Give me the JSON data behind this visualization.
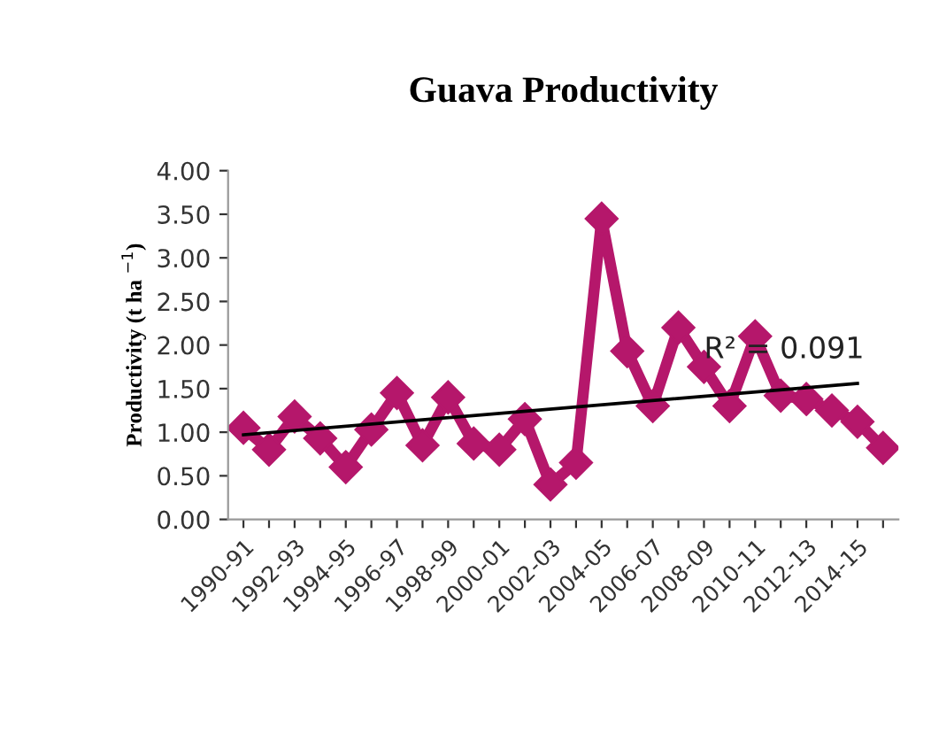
{
  "chart_data": {
    "type": "line",
    "title": "Guava Productivity",
    "ylabel": "Productivity (t ha $^{−1}$)",
    "categories": [
      "1990-91",
      null,
      "1992-93",
      null,
      "1994-95",
      null,
      "1996-97",
      null,
      "1998-99",
      null,
      "2000-01",
      null,
      "2002-03",
      null,
      "2004-05",
      null,
      "2006-07",
      null,
      "2008-09",
      null,
      "2010-11",
      null,
      "2012-13",
      null,
      "2014-15",
      null
    ],
    "series": [
      {
        "color": "#b5176b",
        "marker": "diamond",
        "values": [
          1.05,
          0.8,
          1.18,
          0.93,
          0.6,
          1.03,
          1.45,
          0.85,
          1.4,
          0.87,
          0.8,
          1.15,
          0.4,
          0.65,
          3.45,
          1.93,
          1.3,
          2.2,
          1.75,
          1.3,
          2.1,
          1.42,
          1.38,
          1.25,
          1.12,
          0.82
        ]
      },
      {
        "type": "line",
        "color": "#000000",
        "marker": "none",
        "x": [
          "1990-91",
          "2014-15"
        ],
        "values": [
          0.97,
          1.56
        ]
      }
    ],
    "annotations": [
      {
        "text": "R² = 0.091",
        "x": "2008-09",
        "y": 1.85
      }
    ],
    "ylim": [
      0,
      4
    ],
    "yticks": [
      {
        "value": 0,
        "label": "0.00"
      },
      {
        "value": 0.5,
        "label": "0.50"
      },
      {
        "value": 1,
        "label": "1.00"
      },
      {
        "value": 1.5,
        "label": "1.50"
      },
      {
        "value": 2,
        "label": "2.00"
      },
      {
        "value": 2.5,
        "label": "2.50"
      },
      {
        "value": 3,
        "label": "3.00"
      },
      {
        "value": 3.5,
        "label": "3.50"
      },
      {
        "value": 4,
        "label": "4.00"
      }
    ],
    "grid": false,
    "legend": false
  }
}
